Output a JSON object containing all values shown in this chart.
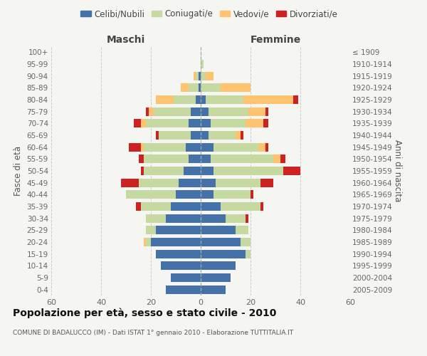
{
  "age_groups": [
    "0-4",
    "5-9",
    "10-14",
    "15-19",
    "20-24",
    "25-29",
    "30-34",
    "35-39",
    "40-44",
    "45-49",
    "50-54",
    "55-59",
    "60-64",
    "65-69",
    "70-74",
    "75-79",
    "80-84",
    "85-89",
    "90-94",
    "95-99",
    "100+"
  ],
  "birth_years": [
    "2005-2009",
    "2000-2004",
    "1995-1999",
    "1990-1994",
    "1985-1989",
    "1980-1984",
    "1975-1979",
    "1970-1974",
    "1965-1969",
    "1960-1964",
    "1955-1959",
    "1950-1954",
    "1945-1949",
    "1940-1944",
    "1935-1939",
    "1930-1934",
    "1925-1929",
    "1920-1924",
    "1915-1919",
    "1910-1914",
    "≤ 1909"
  ],
  "maschi": {
    "celibi": [
      14,
      12,
      16,
      18,
      20,
      18,
      14,
      12,
      10,
      9,
      7,
      5,
      6,
      4,
      5,
      4,
      2,
      1,
      1,
      0,
      0
    ],
    "coniugati": [
      0,
      0,
      0,
      0,
      2,
      4,
      8,
      12,
      20,
      16,
      16,
      18,
      17,
      13,
      17,
      15,
      9,
      4,
      1,
      0,
      0
    ],
    "vedovi": [
      0,
      0,
      0,
      0,
      1,
      0,
      0,
      0,
      0,
      0,
      0,
      0,
      1,
      0,
      2,
      2,
      7,
      3,
      1,
      0,
      0
    ],
    "divorziati": [
      0,
      0,
      0,
      0,
      0,
      0,
      0,
      2,
      0,
      7,
      1,
      2,
      5,
      1,
      3,
      1,
      0,
      0,
      0,
      0,
      0
    ]
  },
  "femmine": {
    "nubili": [
      10,
      12,
      14,
      18,
      16,
      14,
      10,
      8,
      5,
      6,
      5,
      4,
      5,
      3,
      4,
      3,
      2,
      0,
      0,
      0,
      0
    ],
    "coniugate": [
      0,
      0,
      0,
      2,
      4,
      5,
      8,
      16,
      15,
      18,
      28,
      25,
      18,
      11,
      14,
      16,
      15,
      8,
      2,
      1,
      0
    ],
    "vedove": [
      0,
      0,
      0,
      0,
      0,
      0,
      0,
      0,
      0,
      0,
      0,
      3,
      3,
      2,
      7,
      7,
      20,
      12,
      3,
      0,
      0
    ],
    "divorziate": [
      0,
      0,
      0,
      0,
      0,
      0,
      1,
      1,
      1,
      5,
      7,
      2,
      1,
      1,
      2,
      1,
      2,
      0,
      0,
      0,
      0
    ]
  },
  "colors": {
    "celibi": "#4472a8",
    "coniugati": "#c5d9a0",
    "vedovi": "#ffc26e",
    "divorziati": "#cc2222"
  },
  "xlim": 60,
  "title": "Popolazione per età, sesso e stato civile - 2010",
  "subtitle": "COMUNE DI BADALUCCO (IM) - Dati ISTAT 1° gennaio 2010 - Elaborazione TUTTITALIA.IT",
  "label_maschi": "Maschi",
  "label_femmine": "Femmine",
  "ylabel_left": "Fasce di età",
  "ylabel_right": "Anni di nascita",
  "legend_labels": [
    "Celibi/Nubili",
    "Coniugati/e",
    "Vedovi/e",
    "Divorziati/e"
  ],
  "bg_color": "#f5f5f2",
  "grid_color": "#cccccc"
}
